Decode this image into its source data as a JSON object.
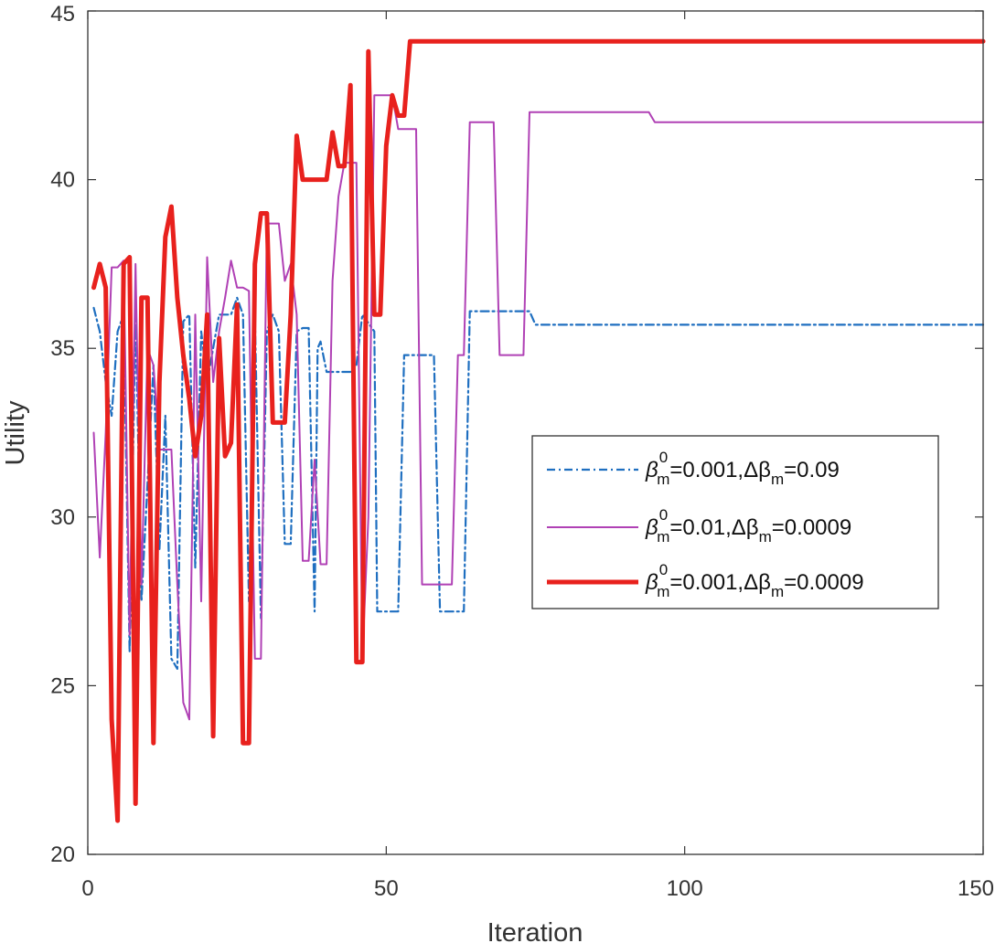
{
  "chart_data": {
    "type": "line",
    "title": "",
    "xlabel": "Iteration",
    "ylabel": "Utility",
    "xlim": [
      0,
      150
    ],
    "ylim": [
      20,
      45
    ],
    "xticks": [
      0,
      50,
      100,
      150
    ],
    "yticks": [
      20,
      25,
      30,
      35,
      40,
      45
    ],
    "grid": false,
    "legend_position": "right",
    "series": [
      {
        "name": "β_m^0=0.001,Δβ_m=0.09",
        "legend": {
          "beta": "β",
          "sub": "m",
          "sup": "0",
          "v1": "=0.001,",
          "delta": "Δβ",
          "sub2": "m",
          "v2": "=0.09"
        },
        "color": "#1f6fc0",
        "style": "dashdot",
        "points": [
          [
            1,
            36.2
          ],
          [
            2,
            35.5
          ],
          [
            3,
            34.0
          ],
          [
            4,
            33.0
          ],
          [
            5,
            35.5
          ],
          [
            6,
            36.0
          ],
          [
            7,
            26.0
          ],
          [
            8,
            36.0
          ],
          [
            9,
            27.5
          ],
          [
            10,
            31.0
          ],
          [
            11,
            34.5
          ],
          [
            12,
            29.0
          ],
          [
            13,
            33.0
          ],
          [
            14,
            25.8
          ],
          [
            15,
            25.5
          ],
          [
            16,
            35.8
          ],
          [
            17,
            36.0
          ],
          [
            18,
            28.5
          ],
          [
            19,
            35.5
          ],
          [
            20,
            34.0
          ],
          [
            22,
            36.0
          ],
          [
            24,
            36.0
          ],
          [
            25,
            36.5
          ],
          [
            26,
            36.0
          ],
          [
            27,
            27.5
          ],
          [
            28,
            36.0
          ],
          [
            29,
            27.0
          ],
          [
            30,
            35.5
          ],
          [
            31,
            36.0
          ],
          [
            32,
            35.5
          ],
          [
            33,
            29.2
          ],
          [
            34,
            29.2
          ],
          [
            35,
            35.5
          ],
          [
            36,
            35.6
          ],
          [
            37,
            35.6
          ],
          [
            38,
            27.2
          ],
          [
            38.5,
            35.0
          ],
          [
            39,
            35.2
          ],
          [
            40,
            34.3
          ],
          [
            44,
            34.3
          ],
          [
            45,
            34.5
          ],
          [
            46,
            36.0
          ],
          [
            48,
            35.5
          ],
          [
            48.5,
            27.2
          ],
          [
            52,
            27.2
          ],
          [
            53,
            34.8
          ],
          [
            58,
            34.8
          ],
          [
            59,
            27.2
          ],
          [
            63,
            27.2
          ],
          [
            64,
            36.1
          ],
          [
            74,
            36.1
          ],
          [
            75,
            35.7
          ],
          [
            150,
            35.7
          ]
        ]
      },
      {
        "name": "β_m^0=0.01,Δβ_m=0.0009",
        "legend": {
          "beta": "β",
          "sub": "m",
          "sup": "0",
          "v1": "=0.01,",
          "delta": "Δβ",
          "sub2": "m",
          "v2": "=0.0009"
        },
        "color": "#b041b5",
        "style": "solid",
        "points": [
          [
            1,
            32.5
          ],
          [
            2,
            28.8
          ],
          [
            3,
            32.5
          ],
          [
            4,
            37.4
          ],
          [
            5,
            37.4
          ],
          [
            6,
            37.6
          ],
          [
            7,
            26.5
          ],
          [
            8,
            37.5
          ],
          [
            9,
            28.0
          ],
          [
            10,
            35.0
          ],
          [
            11,
            34.5
          ],
          [
            12,
            32.0
          ],
          [
            13,
            32.0
          ],
          [
            14,
            32.0
          ],
          [
            15,
            28.0
          ],
          [
            16,
            24.5
          ],
          [
            17,
            24.0
          ],
          [
            18,
            36.0
          ],
          [
            19,
            27.5
          ],
          [
            20,
            37.7
          ],
          [
            21,
            34.0
          ],
          [
            22,
            35.5
          ],
          [
            23,
            36.5
          ],
          [
            24,
            37.6
          ],
          [
            25,
            36.8
          ],
          [
            26,
            36.8
          ],
          [
            27,
            36.7
          ],
          [
            28,
            25.8
          ],
          [
            29,
            25.8
          ],
          [
            30,
            38.7
          ],
          [
            32,
            38.7
          ],
          [
            33,
            37.0
          ],
          [
            34,
            37.5
          ],
          [
            35,
            36.0
          ],
          [
            36,
            28.7
          ],
          [
            37,
            28.7
          ],
          [
            38,
            31.7
          ],
          [
            39,
            28.6
          ],
          [
            40,
            28.6
          ],
          [
            41,
            37.0
          ],
          [
            42,
            39.5
          ],
          [
            43,
            40.5
          ],
          [
            44,
            40.5
          ],
          [
            45,
            40.5
          ],
          [
            46,
            25.8
          ],
          [
            47,
            30.0
          ],
          [
            48,
            42.5
          ],
          [
            51,
            42.5
          ],
          [
            52,
            41.5
          ],
          [
            55,
            41.5
          ],
          [
            56,
            28.0
          ],
          [
            61,
            28.0
          ],
          [
            62,
            34.8
          ],
          [
            63,
            34.8
          ],
          [
            64,
            41.7
          ],
          [
            68,
            41.7
          ],
          [
            69,
            34.8
          ],
          [
            73,
            34.8
          ],
          [
            74,
            42.0
          ],
          [
            94,
            42.0
          ],
          [
            95,
            41.7
          ],
          [
            150,
            41.7
          ]
        ]
      },
      {
        "name": "β_m^0=0.001,Δβ_m=0.0009",
        "legend": {
          "beta": "β",
          "sub": "m",
          "sup": "0",
          "v1": "=0.001,",
          "delta": "Δβ",
          "sub2": "m",
          "v2": "=0.0009"
        },
        "color": "#e8211d",
        "style": "thick",
        "points": [
          [
            1,
            36.8
          ],
          [
            2,
            37.5
          ],
          [
            3,
            36.8
          ],
          [
            4,
            24.0
          ],
          [
            5,
            21.0
          ],
          [
            6,
            37.5
          ],
          [
            7,
            37.7
          ],
          [
            8,
            21.5
          ],
          [
            9,
            36.5
          ],
          [
            10,
            36.5
          ],
          [
            11,
            23.3
          ],
          [
            12,
            34.0
          ],
          [
            13,
            38.3
          ],
          [
            14,
            39.2
          ],
          [
            15,
            36.5
          ],
          [
            16,
            34.8
          ],
          [
            17,
            33.5
          ],
          [
            18,
            31.8
          ],
          [
            19,
            33.0
          ],
          [
            20,
            36.0
          ],
          [
            21,
            23.5
          ],
          [
            22,
            35.3
          ],
          [
            23,
            31.8
          ],
          [
            24,
            32.2
          ],
          [
            25,
            36.3
          ],
          [
            26,
            23.3
          ],
          [
            27,
            23.3
          ],
          [
            28,
            37.5
          ],
          [
            29,
            39.0
          ],
          [
            30,
            39.0
          ],
          [
            31,
            32.8
          ],
          [
            33,
            32.8
          ],
          [
            34,
            36.0
          ],
          [
            35,
            41.3
          ],
          [
            36,
            40.0
          ],
          [
            40,
            40.0
          ],
          [
            41,
            41.4
          ],
          [
            42,
            40.4
          ],
          [
            43,
            40.4
          ],
          [
            44,
            42.8
          ],
          [
            45,
            25.7
          ],
          [
            46,
            25.7
          ],
          [
            47,
            43.8
          ],
          [
            48,
            36.0
          ],
          [
            49,
            36.0
          ],
          [
            50,
            41.0
          ],
          [
            51,
            42.5
          ],
          [
            52,
            41.9
          ],
          [
            53,
            41.9
          ],
          [
            54,
            44.1
          ],
          [
            150,
            44.1
          ]
        ]
      }
    ]
  }
}
